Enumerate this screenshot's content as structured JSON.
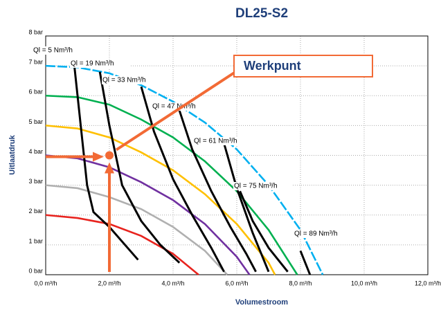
{
  "chart_data": {
    "type": "line",
    "title": "DL25-S2",
    "xlabel": "Volumestroom",
    "ylabel": "Uitlaatdruk",
    "xlim": [
      0,
      12
    ],
    "ylim": [
      0,
      8
    ],
    "xticks": [
      {
        "value": 0,
        "label": "0,0 m³/h"
      },
      {
        "value": 2,
        "label": "2,0 m³/h"
      },
      {
        "value": 4,
        "label": "4,0 m³/h"
      },
      {
        "value": 6,
        "label": "6,0 m³/h"
      },
      {
        "value": 8,
        "label": "8,0 m³/h"
      },
      {
        "value": 10,
        "label": "10,0 m³/h"
      },
      {
        "value": 12,
        "label": "12,0 m³/h"
      }
    ],
    "yticks": [
      {
        "value": 0,
        "label": "0 bar"
      },
      {
        "value": 1,
        "label": "1 bar"
      },
      {
        "value": 2,
        "label": "2 bar"
      },
      {
        "value": 3,
        "label": "3 bar"
      },
      {
        "value": 4,
        "label": "4 bar"
      },
      {
        "value": 5,
        "label": "5 bar"
      },
      {
        "value": 6,
        "label": "6 bar"
      },
      {
        "value": 7,
        "label": "7 bar"
      },
      {
        "value": 8,
        "label": "8 bar"
      }
    ],
    "grid": true,
    "pressure_curves": [
      {
        "color": "#e8231e",
        "x": [
          0,
          1,
          2,
          3,
          4,
          4.8
        ],
        "values": [
          2,
          1.9,
          1.7,
          1.3,
          0.7,
          0
        ]
      },
      {
        "color": "#b0b0b0",
        "x": [
          0,
          1,
          2,
          3,
          4,
          5,
          5.7
        ],
        "values": [
          3,
          2.9,
          2.6,
          2.2,
          1.6,
          0.8,
          0
        ]
      },
      {
        "color": "#7030a0",
        "x": [
          0,
          1,
          2,
          3,
          4,
          5,
          6,
          6.4
        ],
        "values": [
          4,
          3.9,
          3.6,
          3.1,
          2.5,
          1.7,
          0.6,
          0
        ]
      },
      {
        "color": "#ffc000",
        "x": [
          0,
          1,
          2,
          3,
          4,
          5,
          6,
          7,
          7.2
        ],
        "values": [
          5,
          4.9,
          4.6,
          4.1,
          3.5,
          2.7,
          1.7,
          0.4,
          0
        ]
      },
      {
        "color": "#00b050",
        "x": [
          0,
          1,
          2,
          3,
          4,
          5,
          6,
          7,
          7.9
        ],
        "values": [
          6,
          5.95,
          5.7,
          5.2,
          4.6,
          3.8,
          2.8,
          1.5,
          0
        ]
      },
      {
        "color": "#00b0f0",
        "dashed": true,
        "x": [
          0,
          1,
          2,
          3,
          4,
          5,
          6,
          7,
          8,
          8.7
        ],
        "values": [
          7,
          6.95,
          6.75,
          6.35,
          5.8,
          5.1,
          4.2,
          3.0,
          1.5,
          0
        ]
      }
    ],
    "series": [
      {
        "name": "Ql = 5 Nm³/h",
        "color": "#000000",
        "x": [
          0.9,
          1.1,
          1.3,
          1.5,
          2.0,
          2.9
        ],
        "values": [
          7.0,
          5.0,
          3.0,
          2.1,
          1.6,
          0.5
        ]
      },
      {
        "name": "Ql = 19 Nm³/h",
        "color": "#000000",
        "x": [
          1.7,
          2.0,
          2.4,
          3.0,
          3.6,
          4.2
        ],
        "values": [
          6.8,
          5.0,
          3.0,
          1.8,
          1.0,
          0.4
        ]
      },
      {
        "name": "Ql = 33 Nm³/h",
        "color": "#000000",
        "x": [
          3.0,
          3.4,
          4.0,
          4.6,
          5.2,
          5.6
        ],
        "values": [
          6.3,
          4.8,
          3.2,
          2.0,
          0.9,
          0.1
        ]
      },
      {
        "name": "Ql = 47 Nm³/h",
        "color": "#000000",
        "x": [
          4.2,
          4.6,
          5.2,
          5.8,
          6.3,
          6.6
        ],
        "values": [
          5.5,
          4.2,
          2.8,
          1.6,
          0.7,
          0.1
        ]
      },
      {
        "name": "Ql = 61 Nm³/h",
        "color": "#000000",
        "x": [
          5.6,
          6.0,
          6.5,
          7.0
        ],
        "values": [
          4.4,
          2.9,
          1.4,
          0.1
        ]
      },
      {
        "name": "Ql = 75 Nm³/h",
        "color": "#000000",
        "x": [
          6.1,
          6.5,
          7.0,
          7.6
        ],
        "values": [
          2.8,
          1.8,
          0.9,
          0.1
        ]
      },
      {
        "name": "Ql = 89 Nm³/h",
        "color": "#000000",
        "x": [
          8.0,
          8.3
        ],
        "values": [
          0.8,
          0
        ]
      }
    ],
    "operating_point": {
      "label": "Werkpunt",
      "x": 2,
      "y": 4,
      "color": "#f26a35"
    }
  }
}
